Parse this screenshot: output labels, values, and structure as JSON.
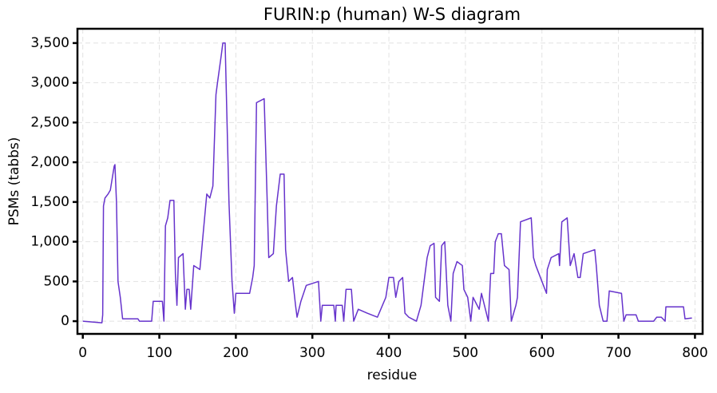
{
  "chart_data": {
    "type": "line",
    "title": "FURIN:p (human) W-S diagram",
    "x_label": "residue",
    "y_label": "PSMs (tabbs)",
    "xlim": [
      -7,
      810
    ],
    "ylim": [
      -160,
      3680
    ],
    "xticks": [
      0,
      100,
      200,
      300,
      400,
      500,
      600,
      700,
      800
    ],
    "yticks": [
      0,
      500,
      {
        "value": 1000,
        "label": "1,000"
      },
      {
        "value": 1500,
        "label": "1,500"
      },
      {
        "value": 2000,
        "label": "2,000"
      },
      {
        "value": 2500,
        "label": "2,500"
      },
      {
        "value": 3000,
        "label": "3,000"
      },
      {
        "value": 3500,
        "label": "3,500"
      }
    ],
    "grid": true,
    "series": [
      {
        "color": "#6633cc",
        "x": [
          0,
          25,
          26,
          27,
          29,
          33,
          36,
          41,
          42,
          44,
          46,
          49,
          52,
          72,
          74,
          90,
          92,
          104,
          106,
          108,
          111,
          114,
          119,
          121,
          123,
          125,
          131,
          134,
          136,
          139,
          141,
          145,
          153,
          162,
          166,
          170,
          174,
          176,
          181,
          183,
          186,
          191,
          195,
          198,
          200,
          218,
          222,
          224,
          227,
          237,
          241,
          243,
          249,
          253,
          258,
          263,
          265,
          269,
          274,
          278,
          280,
          285,
          292,
          308,
          311,
          313,
          328,
          330,
          331,
          339,
          341,
          344,
          351,
          354,
          360,
          372,
          385,
          396,
          400,
          406,
          409,
          413,
          418,
          421,
          426,
          436,
          442,
          450,
          454,
          459,
          461,
          466,
          469,
          473,
          477,
          481,
          484,
          489,
          496,
          498,
          503,
          507,
          510,
          518,
          521,
          530,
          533,
          537,
          539,
          543,
          547,
          551,
          557,
          560,
          566,
          568,
          572,
          586,
          589,
          592,
          606,
          607,
          612,
          622,
          623,
          626,
          633,
          637,
          642,
          647,
          650,
          654,
          669,
          671,
          675,
          680,
          685,
          688,
          704,
          707,
          710,
          723,
          726,
          746,
          750,
          756,
          761,
          762,
          785,
          787,
          796
        ],
        "values": [
          0,
          -20,
          80,
          1450,
          1550,
          1600,
          1650,
          1950,
          1970,
          1500,
          500,
          300,
          30,
          30,
          0,
          0,
          250,
          250,
          0,
          1200,
          1300,
          1520,
          1520,
          600,
          200,
          800,
          850,
          150,
          400,
          400,
          150,
          700,
          650,
          1600,
          1550,
          1700,
          2850,
          3000,
          3350,
          3500,
          3500,
          1500,
          500,
          100,
          350,
          350,
          550,
          700,
          2750,
          2800,
          1500,
          800,
          850,
          1450,
          1850,
          1850,
          900,
          500,
          550,
          200,
          50,
          250,
          450,
          500,
          0,
          200,
          200,
          0,
          200,
          200,
          0,
          400,
          400,
          0,
          150,
          100,
          50,
          300,
          550,
          550,
          300,
          500,
          550,
          100,
          50,
          0,
          200,
          800,
          950,
          980,
          300,
          250,
          950,
          1000,
          200,
          0,
          600,
          750,
          700,
          400,
          300,
          0,
          300,
          150,
          350,
          0,
          600,
          600,
          1000,
          1100,
          1100,
          700,
          650,
          0,
          200,
          300,
          1250,
          1300,
          800,
          700,
          350,
          650,
          800,
          850,
          700,
          1250,
          1300,
          700,
          850,
          550,
          550,
          850,
          900,
          700,
          200,
          0,
          0,
          380,
          350,
          0,
          80,
          80,
          0,
          0,
          50,
          50,
          0,
          180,
          180,
          30,
          40
        ]
      }
    ]
  }
}
